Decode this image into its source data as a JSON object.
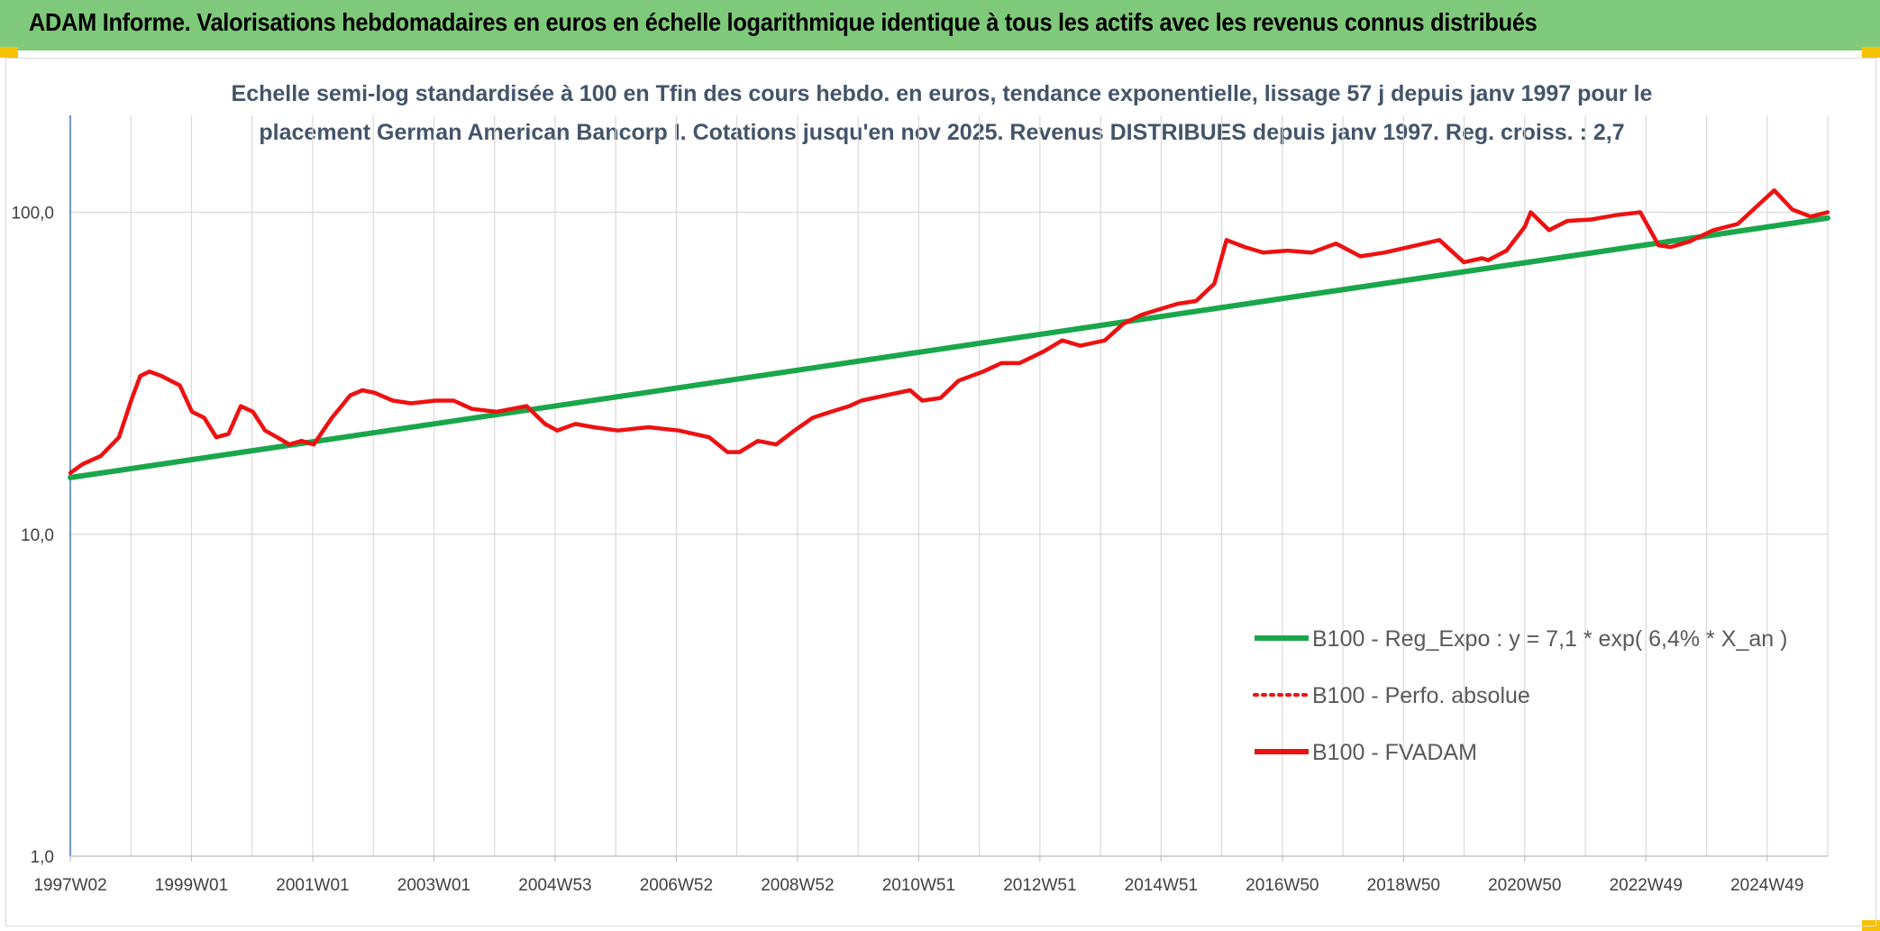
{
  "header": {
    "title": "ADAM Informe. Valorisations hebdomadaires en euros en échelle logarithmique identique à tous les actifs avec les revenus connus distribués"
  },
  "chart_data": {
    "type": "line",
    "title_line1": "Echelle semi-log standardisée à 100 en Tfin des cours hebdo. en euros, tendance exponentielle, lissage 57 j depuis janv 1997 pour le",
    "title_line2": "placement German American Bancorp I. Cotations jusqu'en nov 2025. Revenus DISTRIBUES depuis janv 1997. Reg. croiss. : 2,7",
    "y_scale": "log",
    "ylim": [
      1,
      200
    ],
    "y_ticks": [
      1,
      10,
      100
    ],
    "y_tick_labels": [
      "1,0",
      "10,0",
      "100,0"
    ],
    "xlim": [
      1997.0,
      2025.88
    ],
    "x_tick_labels": [
      "1997W02",
      "1999W01",
      "2001W01",
      "2003W01",
      "2004W53",
      "2006W52",
      "2008W52",
      "2010W51",
      "2012W51",
      "2014W51",
      "2016W50",
      "2018W50",
      "2020W50",
      "2022W49",
      "2024W49"
    ],
    "grid": true,
    "legend_position": "bottom-right",
    "series": [
      {
        "name": "B100 - Reg_Expo : y = 7,1 * exp( 6,4% *  X_an )",
        "color": "#1aa64b",
        "style": "solid",
        "x": [
          1997.0,
          2025.88
        ],
        "y": [
          15.0,
          96.0
        ]
      },
      {
        "name": "B100 - Perfo. absolue",
        "color": "#ee1111",
        "style": "dotted",
        "x": [],
        "y": []
      },
      {
        "name": "B100 - FVADAM",
        "color": "#ee1111",
        "style": "solid",
        "x": [
          1997.0,
          1997.2,
          1997.5,
          1997.8,
          1998.0,
          1998.15,
          1998.3,
          1998.5,
          1998.8,
          1999.0,
          1999.2,
          1999.4,
          1999.6,
          1999.8,
          2000.0,
          2000.2,
          2000.4,
          2000.6,
          2000.8,
          2001.0,
          2001.3,
          2001.6,
          2001.8,
          2002.0,
          2002.3,
          2002.6,
          2003.0,
          2003.3,
          2003.6,
          2004.0,
          2004.5,
          2004.8,
          2005.0,
          2005.3,
          2005.6,
          2006.0,
          2006.5,
          2007.0,
          2007.5,
          2007.8,
          2008.0,
          2008.3,
          2008.6,
          2008.9,
          2009.2,
          2009.5,
          2009.8,
          2010.0,
          2010.4,
          2010.8,
          2011.0,
          2011.3,
          2011.6,
          2012.0,
          2012.3,
          2012.6,
          2013.0,
          2013.3,
          2013.6,
          2014.0,
          2014.3,
          2014.6,
          2014.9,
          2015.2,
          2015.5,
          2015.8,
          2016.0,
          2016.3,
          2016.6,
          2017.0,
          2017.4,
          2017.8,
          2018.2,
          2018.6,
          2019.0,
          2019.5,
          2019.9,
          2020.2,
          2020.3,
          2020.6,
          2020.9,
          2021.0,
          2021.3,
          2021.6,
          2022.0,
          2022.4,
          2022.8,
          2023.1,
          2023.3,
          2023.6,
          2024.0,
          2024.4,
          2024.8,
          2025.0,
          2025.3,
          2025.6,
          2025.88
        ],
        "y": [
          15.5,
          16.5,
          17.5,
          20.0,
          26.0,
          31.0,
          32.0,
          31.0,
          29.0,
          24.0,
          23.0,
          20.0,
          20.5,
          25.0,
          24.0,
          21.0,
          20.0,
          19.0,
          19.5,
          19.0,
          23.0,
          27.0,
          28.0,
          27.5,
          26.0,
          25.5,
          26.0,
          26.0,
          24.5,
          24.0,
          25.0,
          22.0,
          21.0,
          22.0,
          21.5,
          21.0,
          21.5,
          21.0,
          20.0,
          18.0,
          18.0,
          19.5,
          19.0,
          21.0,
          23.0,
          24.0,
          25.0,
          26.0,
          27.0,
          28.0,
          26.0,
          26.5,
          30.0,
          32.0,
          34.0,
          34.0,
          37.0,
          40.0,
          38.5,
          40.0,
          45.0,
          48.0,
          50.0,
          52.0,
          53.0,
          60.0,
          82.0,
          78.0,
          75.0,
          76.0,
          75.0,
          80.0,
          73.0,
          75.0,
          78.0,
          82.0,
          70.0,
          72.0,
          71.0,
          76.0,
          90.0,
          100.0,
          88.0,
          94.0,
          95.0,
          98.0,
          100.0,
          79.0,
          78.0,
          81.0,
          88.0,
          92.0,
          108.0,
          117.0,
          102.0,
          97.0,
          100.0
        ]
      }
    ]
  }
}
